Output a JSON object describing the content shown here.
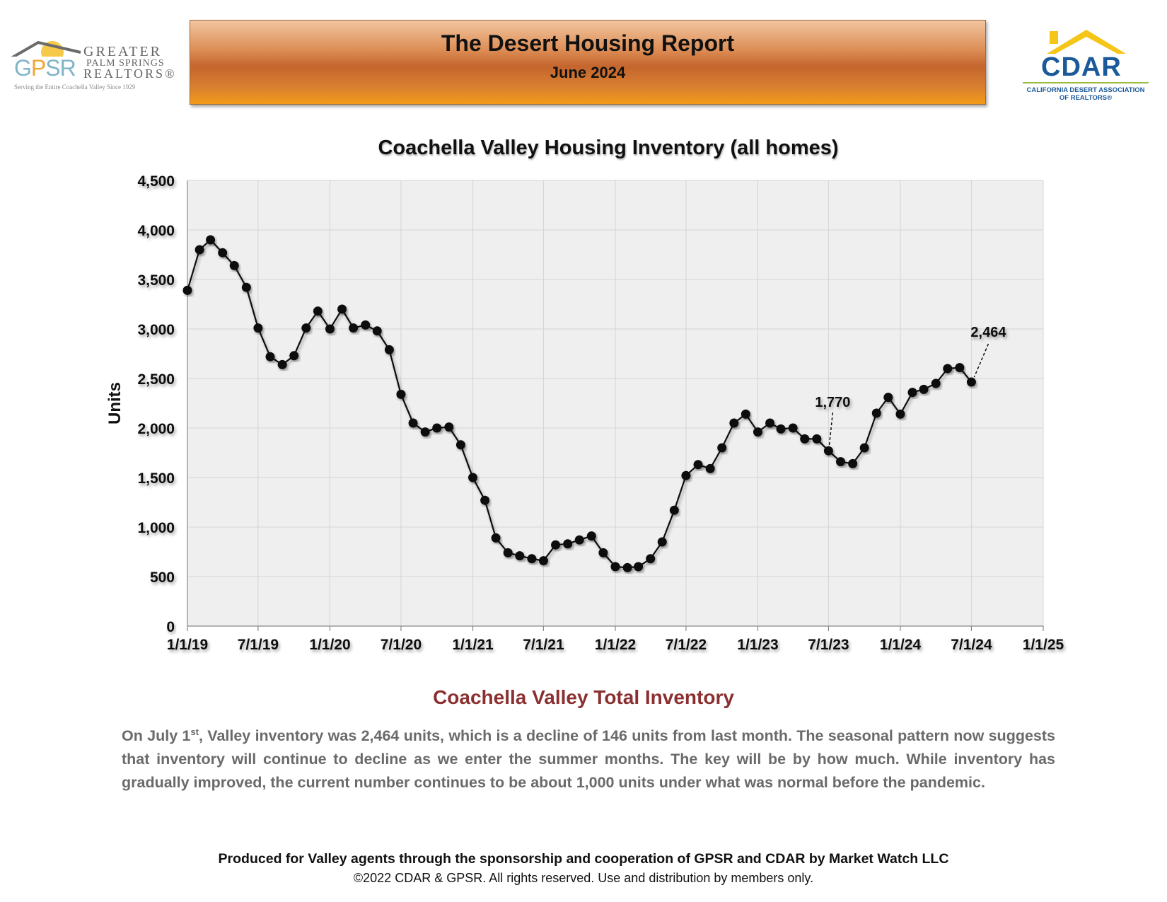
{
  "header": {
    "title": "The Desert Housing Report",
    "subtitle": "June 2024"
  },
  "logos": {
    "left": {
      "mark_g": "G",
      "mark_p": "P",
      "mark_sr": "SR",
      "greater": "GREATER",
      "palm_springs": "PALM SPRINGS",
      "realtors": "REALTORS®",
      "tagline": "Serving the Entire Coachella Valley Since 1929"
    },
    "right": {
      "name": "CDAR",
      "line1": "CALIFORNIA DESERT ASSOCIATION",
      "line2": "OF REALTORS®"
    }
  },
  "chart_data": {
    "type": "line",
    "title": "Coachella Valley Housing Inventory (all homes)",
    "xlabel": "",
    "ylabel": "Units",
    "ylim": [
      0,
      4500
    ],
    "yticks": [
      0,
      500,
      1000,
      1500,
      2000,
      2500,
      3000,
      3500,
      4000,
      4500
    ],
    "ytick_labels": [
      "0",
      "500",
      "1,000",
      "1,500",
      "2,000",
      "2,500",
      "3,000",
      "3,500",
      "4,000",
      "4,500"
    ],
    "xlim": [
      "2019-01-01",
      "2025-01-01"
    ],
    "xtick_labels": [
      "1/1/19",
      "7/1/19",
      "1/1/20",
      "7/1/20",
      "1/1/21",
      "7/1/21",
      "1/1/22",
      "7/1/22",
      "1/1/23",
      "7/1/23",
      "1/1/24",
      "7/1/24",
      "1/1/25"
    ],
    "grid": true,
    "marker": "circle",
    "annotations": [
      {
        "text": "1,770",
        "x": "2023-07-01"
      },
      {
        "text": "2,464",
        "x": "2024-07-01"
      }
    ],
    "series": [
      {
        "x": [
          "2019-01-01",
          "2019-02-01",
          "2019-03-01",
          "2019-04-01",
          "2019-05-01",
          "2019-06-01",
          "2019-07-01",
          "2019-08-01",
          "2019-09-01",
          "2019-10-01",
          "2019-11-01",
          "2019-12-01",
          "2020-01-01",
          "2020-02-01",
          "2020-03-01",
          "2020-04-01",
          "2020-05-01",
          "2020-06-01",
          "2020-07-01",
          "2020-08-01",
          "2020-09-01",
          "2020-10-01",
          "2020-11-01",
          "2020-12-01",
          "2021-01-01",
          "2021-02-01",
          "2021-03-01",
          "2021-04-01",
          "2021-05-01",
          "2021-06-01",
          "2021-07-01",
          "2021-08-01",
          "2021-09-01",
          "2021-10-01",
          "2021-11-01",
          "2021-12-01",
          "2022-01-01",
          "2022-02-01",
          "2022-03-01",
          "2022-04-01",
          "2022-05-01",
          "2022-06-01",
          "2022-07-01",
          "2022-08-01",
          "2022-09-01",
          "2022-10-01",
          "2022-11-01",
          "2022-12-01",
          "2023-01-01",
          "2023-02-01",
          "2023-03-01",
          "2023-04-01",
          "2023-05-01",
          "2023-06-01",
          "2023-07-01",
          "2023-08-01",
          "2023-09-01",
          "2023-10-01",
          "2023-11-01",
          "2023-12-01",
          "2024-01-01",
          "2024-02-01",
          "2024-03-01",
          "2024-04-01",
          "2024-05-01",
          "2024-06-01",
          "2024-07-01"
        ],
        "values": [
          3390,
          3800,
          3900,
          3770,
          3640,
          3420,
          3010,
          2720,
          2640,
          2730,
          3010,
          3180,
          3000,
          3200,
          3010,
          3040,
          2980,
          2790,
          2340,
          2050,
          1960,
          2000,
          2010,
          1830,
          1500,
          1270,
          890,
          740,
          710,
          680,
          660,
          820,
          830,
          870,
          910,
          740,
          600,
          590,
          600,
          680,
          850,
          1170,
          1520,
          1630,
          1590,
          1800,
          2050,
          2140,
          1960,
          2050,
          1990,
          2000,
          1890,
          1890,
          1770,
          1660,
          1640,
          1800,
          2150,
          2310,
          2140,
          2360,
          2390,
          2450,
          2600,
          2610,
          2464
        ]
      }
    ]
  },
  "content": {
    "section_heading": "Coachella Valley Total Inventory",
    "para_lead": "On July 1",
    "para_sup": "st",
    "para_rest": ", Valley inventory was 2,464 units, which is a decline of 146 units from last month. The seasonal pattern now suggests that inventory will continue to decline as we enter the summer months. The key will be by how much. While inventory has gradually improved, the current number continues to be about 1,000 units under what was normal before the pandemic."
  },
  "footer": {
    "line1": "Produced for Valley agents through the sponsorship and cooperation of GPSR and CDAR by Market Watch LLC",
    "line2": "©2022 CDAR & GPSR.  All rights reserved.  Use and distribution by members only."
  }
}
